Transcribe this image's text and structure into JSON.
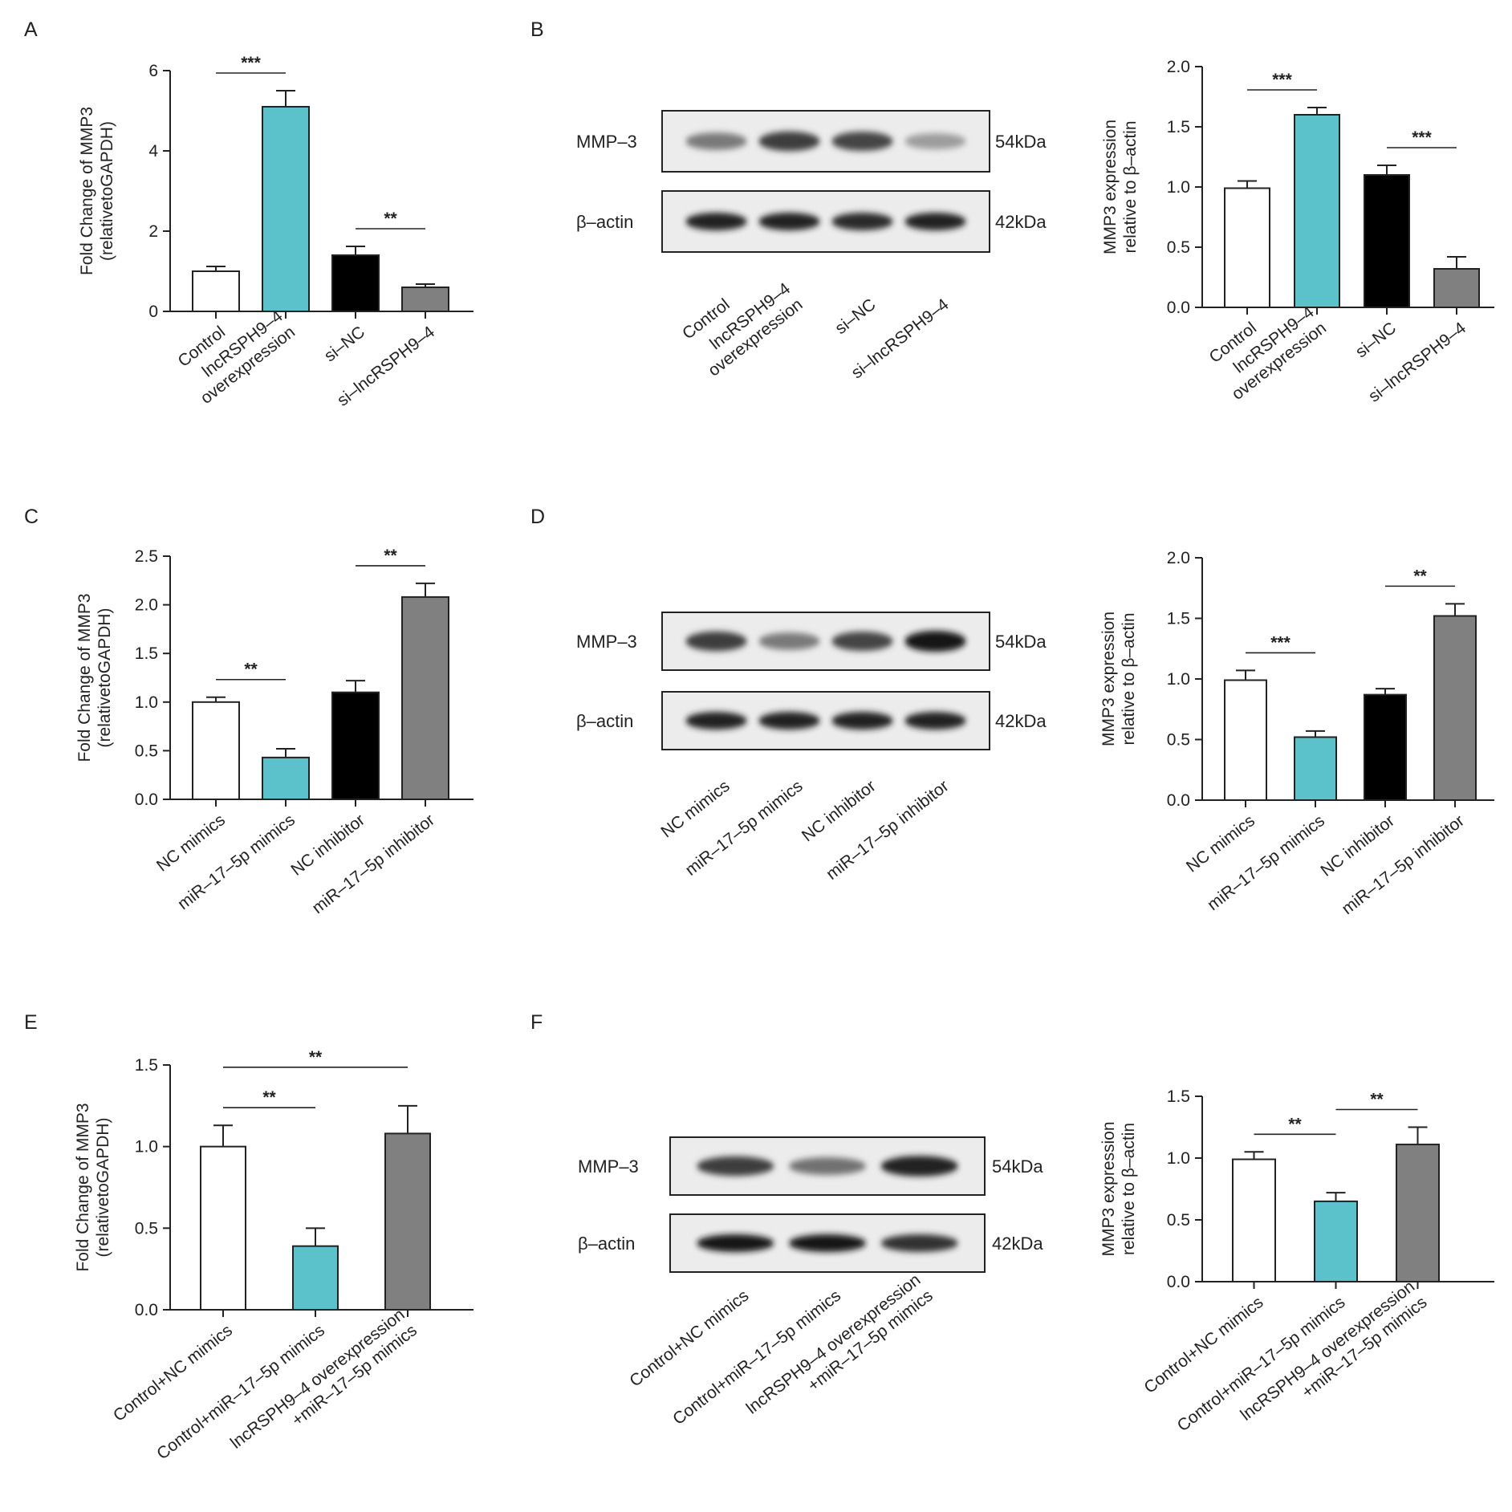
{
  "panel_letters": [
    "A",
    "B",
    "C",
    "D",
    "E",
    "F"
  ],
  "colors": {
    "white": "#ffffff",
    "teal": "#5bc2cb",
    "black": "#000000",
    "gray": "#808080",
    "axis": "#222222"
  },
  "blots": [
    {
      "panel": "B",
      "rows": [
        {
          "label": "MMP–3",
          "size": "54kDa",
          "intensities": [
            0.45,
            0.8,
            0.75,
            0.25
          ]
        },
        {
          "label": "β–actin",
          "size": "42kDa",
          "intensities": [
            0.95,
            0.95,
            0.9,
            0.95
          ]
        }
      ],
      "lanes": [
        "Control",
        "lncRSPH9–4\noverexpression",
        "si–NC",
        "si–lncRSPH9–4"
      ]
    },
    {
      "panel": "D",
      "rows": [
        {
          "label": "MMP–3",
          "size": "54kDa",
          "intensities": [
            0.8,
            0.45,
            0.75,
            1.0
          ]
        },
        {
          "label": "β–actin",
          "size": "42kDa",
          "intensities": [
            0.95,
            0.95,
            0.95,
            0.95
          ]
        }
      ],
      "lanes": [
        "NC mimics",
        "miR–17–5p mimics",
        "NC inhibitor",
        "miR–17–5p inhibitor"
      ]
    },
    {
      "panel": "F",
      "rows": [
        {
          "label": "MMP–3",
          "size": "54kDa",
          "intensities": [
            0.8,
            0.5,
            0.95
          ]
        },
        {
          "label": "β–actin",
          "size": "42kDa",
          "intensities": [
            1.0,
            1.0,
            0.85
          ]
        }
      ],
      "lanes": [
        "Control+NC mimics",
        "Control+miR–17–5p mimics",
        "lncRSPH9–4 overexpression\n+miR–17–5p mimics"
      ]
    }
  ],
  "chart_data": [
    {
      "panel": "A",
      "type": "bar",
      "ylabel": "Fold Change of MMP3\n(relativetoGAPDH)",
      "categories": [
        "Control",
        "lncRSPH9–4\noverexpression",
        "si–NC",
        "si–lncRSPH9–4"
      ],
      "values": [
        1.0,
        5.1,
        1.4,
        0.6
      ],
      "errors": [
        0.12,
        0.4,
        0.22,
        0.08
      ],
      "colors": [
        "white",
        "teal",
        "black",
        "gray"
      ],
      "ylim": [
        0,
        6
      ],
      "yticks": [
        "0",
        "2",
        "4",
        "6"
      ],
      "ytick_values": [
        0,
        2,
        4,
        6
      ],
      "significance": [
        {
          "from": 0,
          "to": 1,
          "label": "***"
        },
        {
          "from": 2,
          "to": 3,
          "label": "**"
        }
      ]
    },
    {
      "panel": "B",
      "type": "bar",
      "ylabel": "MMP3 expression\nrelative to β–actin",
      "categories": [
        "Control",
        "lncRSPH9–4\noverexpression",
        "si–NC",
        "si–lncRSPH9–4"
      ],
      "values": [
        0.99,
        1.6,
        1.1,
        0.32
      ],
      "errors": [
        0.06,
        0.06,
        0.08,
        0.1
      ],
      "colors": [
        "white",
        "teal",
        "black",
        "gray"
      ],
      "ylim": [
        0,
        2.0
      ],
      "yticks": [
        "0.0",
        "0.5",
        "1.0",
        "1.5",
        "2.0"
      ],
      "ytick_values": [
        0,
        0.5,
        1.0,
        1.5,
        2.0
      ],
      "significance": [
        {
          "from": 0,
          "to": 1,
          "label": "***"
        },
        {
          "from": 2,
          "to": 3,
          "label": "***"
        }
      ]
    },
    {
      "panel": "C",
      "type": "bar",
      "ylabel": "Fold Change of MMP3\n(relativetoGAPDH)",
      "categories": [
        "NC mimics",
        "miR–17–5p mimics",
        "NC inhibitor",
        "miR–17–5p inhibitor"
      ],
      "values": [
        1.0,
        0.43,
        1.1,
        2.08
      ],
      "errors": [
        0.05,
        0.09,
        0.12,
        0.14
      ],
      "colors": [
        "white",
        "teal",
        "black",
        "gray"
      ],
      "ylim": [
        0,
        2.5
      ],
      "yticks": [
        "0.0",
        "0.5",
        "1.0",
        "1.5",
        "2.0",
        "2.5"
      ],
      "ytick_values": [
        0,
        0.5,
        1.0,
        1.5,
        2.0,
        2.5
      ],
      "significance": [
        {
          "from": 0,
          "to": 1,
          "label": "**"
        },
        {
          "from": 2,
          "to": 3,
          "label": "**"
        }
      ]
    },
    {
      "panel": "D",
      "type": "bar",
      "ylabel": "MMP3 expression\nrelative to β–actin",
      "categories": [
        "NC mimics",
        "miR–17–5p mimics",
        "NC inhibitor",
        "miR–17–5p inhibitor"
      ],
      "values": [
        0.99,
        0.52,
        0.87,
        1.52
      ],
      "errors": [
        0.08,
        0.05,
        0.05,
        0.1
      ],
      "colors": [
        "white",
        "teal",
        "black",
        "gray"
      ],
      "ylim": [
        0,
        2.0
      ],
      "yticks": [
        "0.0",
        "0.5",
        "1.0",
        "1.5",
        "2.0"
      ],
      "ytick_values": [
        0,
        0.5,
        1.0,
        1.5,
        2.0
      ],
      "significance": [
        {
          "from": 0,
          "to": 1,
          "label": "***"
        },
        {
          "from": 2,
          "to": 3,
          "label": "**"
        }
      ]
    },
    {
      "panel": "E",
      "type": "bar",
      "ylabel": "Fold Change of MMP3\n(relativetoGAPDH)",
      "categories": [
        "Control+NC mimics",
        "Control+miR–17–5p mimics",
        "lncRSPH9–4 overexpression\n+miR–17–5p mimics"
      ],
      "values": [
        1.0,
        0.39,
        1.08
      ],
      "errors": [
        0.13,
        0.11,
        0.17
      ],
      "colors": [
        "white",
        "teal",
        "gray"
      ],
      "ylim": [
        0,
        1.5
      ],
      "yticks": [
        "0.0",
        "0.5",
        "1.0",
        "1.5"
      ],
      "ytick_values": [
        0,
        0.5,
        1.0,
        1.5
      ],
      "significance": [
        {
          "from": 0,
          "to": 1,
          "label": "**"
        },
        {
          "from": 0,
          "to": 2,
          "label": "**"
        }
      ]
    },
    {
      "panel": "F",
      "type": "bar",
      "ylabel": "MMP3 expression\nrelative to β–actin",
      "categories": [
        "Control+NC mimics",
        "Control+miR–17–5p mimics",
        "lncRSPH9–4 overexpression\n+miR–17–5p mimics"
      ],
      "values": [
        0.99,
        0.65,
        1.11
      ],
      "errors": [
        0.06,
        0.07,
        0.14
      ],
      "colors": [
        "white",
        "teal",
        "gray"
      ],
      "ylim": [
        0,
        1.5
      ],
      "yticks": [
        "0.0",
        "0.5",
        "1.0",
        "1.5"
      ],
      "ytick_values": [
        0,
        0.5,
        1.0,
        1.5
      ],
      "significance": [
        {
          "from": 0,
          "to": 1,
          "label": "**"
        },
        {
          "from": 1,
          "to": 2,
          "label": "**"
        }
      ]
    }
  ]
}
